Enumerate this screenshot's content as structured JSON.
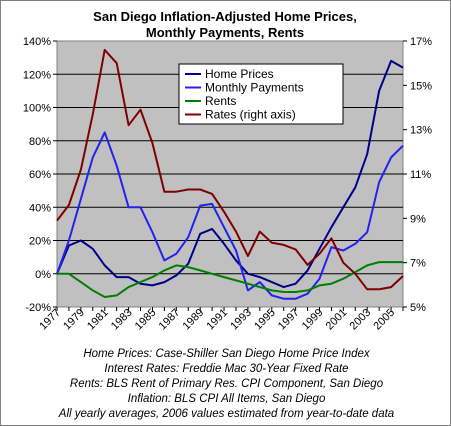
{
  "chart_data": {
    "type": "line",
    "title": [
      "San Diego Inflation-Adjusted Home Prices,",
      "Monthly Payments,  Rents"
    ],
    "x": [
      1977,
      1978,
      1979,
      1980,
      1981,
      1982,
      1983,
      1984,
      1985,
      1986,
      1987,
      1988,
      1989,
      1990,
      1991,
      1992,
      1993,
      1994,
      1995,
      1996,
      1997,
      1998,
      1999,
      2000,
      2001,
      2002,
      2003,
      2004,
      2005,
      2006
    ],
    "x_tick_labels": [
      "1977",
      "1979",
      "1981",
      "1983",
      "1985",
      "1987",
      "1989",
      "1991",
      "1993",
      "1995",
      "1997",
      "1999",
      "2001",
      "2003",
      "2005"
    ],
    "y_left": {
      "range": [
        -20,
        140
      ],
      "ticks": [
        "-20%",
        "0%",
        "20%",
        "40%",
        "60%",
        "80%",
        "100%",
        "120%",
        "140%"
      ]
    },
    "y_right": {
      "range": [
        5,
        17
      ],
      "ticks": [
        "5%",
        "7%",
        "9%",
        "11%",
        "13%",
        "15%",
        "17%"
      ]
    },
    "grid": true,
    "plot_background": "#c0c0c0",
    "legend_position": "top-right inside plot",
    "series": [
      {
        "name": "Home Prices",
        "axis": "left",
        "color": "#00008b",
        "values": [
          0,
          17,
          20,
          15,
          5,
          -2,
          -2,
          -6,
          -7,
          -5,
          -1,
          6,
          24,
          27,
          18,
          8,
          0,
          -2,
          -5,
          -8,
          -6,
          2,
          15,
          28,
          40,
          52,
          72,
          110,
          128,
          124
        ]
      },
      {
        "name": "Monthly Payments",
        "axis": "left",
        "color": "#2222ee",
        "values": [
          0,
          20,
          45,
          70,
          85,
          65,
          40,
          40,
          25,
          8,
          12,
          22,
          41,
          42,
          28,
          14,
          -10,
          -5,
          -13,
          -15,
          -15,
          -12,
          -3,
          16,
          14,
          18,
          25,
          55,
          70,
          77
        ]
      },
      {
        "name": "Rents",
        "axis": "left",
        "color": "#008000",
        "values": [
          0,
          0,
          -5,
          -10,
          -14,
          -13,
          -8,
          -5,
          -2,
          2,
          5,
          4,
          2,
          0,
          -2,
          -4,
          -6,
          -8,
          -10,
          -11,
          -11,
          -10,
          -7,
          -6,
          -3,
          1,
          5,
          7,
          7,
          7
        ]
      },
      {
        "name": "Rates (right axis)",
        "axis": "right",
        "color": "#800000",
        "values": [
          8.9,
          9.6,
          11.2,
          13.7,
          16.6,
          16.0,
          13.2,
          13.9,
          12.4,
          10.2,
          10.2,
          10.3,
          10.3,
          10.1,
          9.3,
          8.4,
          7.3,
          8.4,
          7.9,
          7.8,
          7.6,
          6.9,
          7.4,
          8.1,
          7.0,
          6.5,
          5.8,
          5.8,
          5.9,
          6.4
        ]
      }
    ]
  },
  "notes": [
    "Home Prices: Case-Shiller San Diego Home Price Index",
    "Interest Rates: Freddie Mac 30-Year Fixed Rate",
    "Rents: BLS Rent of Primary Res. CPI Component, San Diego",
    "Inflation: BLS CPI All Items, San Diego",
    "All yearly averages, 2006 values estimated from year-to-date data"
  ]
}
